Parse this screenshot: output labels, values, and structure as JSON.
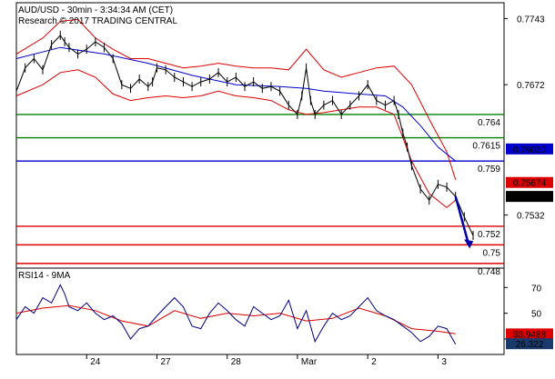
{
  "header": {
    "line1": "AUD/USD - 30min - 3:34:34 AM (CET)",
    "line2": "Research © 2017 TRADING CENTRAL"
  },
  "chart_data": [
    {
      "type": "line",
      "panel": "price",
      "ylim": [
        0.7475,
        0.776
      ],
      "x_range": [
        0,
        104
      ],
      "y_ticks": [
        {
          "label": "0.7743",
          "value": 0.7743
        },
        {
          "label": "0.7672",
          "value": 0.7672
        },
        {
          "label": "0.7532",
          "value": 0.7532
        }
      ],
      "levels": [
        {
          "value": 0.764,
          "label": "0.764",
          "color": "#008000"
        },
        {
          "value": 0.7615,
          "label": "0.7615",
          "color": "#008000"
        },
        {
          "value": 0.759,
          "label": "0.759",
          "color": "#0000cc"
        },
        {
          "value": 0.752,
          "label": "0.752",
          "color": "#dd0000"
        },
        {
          "value": 0.75,
          "label": "0.75",
          "color": "#dd0000"
        },
        {
          "value": 0.748,
          "label": "0.748",
          "color": "#dd0000"
        }
      ],
      "price_badges": [
        {
          "value": 0.7603,
          "label": "0.76030",
          "bg": "#0000cc",
          "fg": "#ffffff"
        },
        {
          "value": 0.7567,
          "label": "0.75674",
          "bg": "#dd0000",
          "fg": "#ffffff"
        },
        {
          "value": 0.7552,
          "label": "0.75523",
          "bg": "#000000",
          "fg": "#ffffff"
        }
      ],
      "price": {
        "x": [
          0,
          2,
          4,
          6,
          8,
          10,
          11,
          12,
          14,
          16,
          18,
          20,
          22,
          24,
          26,
          28,
          30,
          31,
          32,
          34,
          36,
          38,
          40,
          42,
          44,
          46,
          48,
          50,
          52,
          54,
          56,
          58,
          60,
          62,
          64,
          65,
          66,
          67,
          68,
          70,
          72,
          74,
          76,
          78,
          80,
          82,
          84,
          86,
          87,
          88,
          89,
          90,
          92,
          94,
          96,
          98,
          100,
          102,
          104
        ],
        "y": [
          0.7665,
          0.769,
          0.77,
          0.7688,
          0.7715,
          0.7725,
          0.7718,
          0.7712,
          0.7705,
          0.771,
          0.7718,
          0.7712,
          0.77,
          0.7672,
          0.7668,
          0.7678,
          0.767,
          0.7675,
          0.769,
          0.7688,
          0.768,
          0.7675,
          0.767,
          0.7675,
          0.7678,
          0.7685,
          0.7675,
          0.768,
          0.767,
          0.7675,
          0.7668,
          0.767,
          0.7665,
          0.765,
          0.764,
          0.766,
          0.769,
          0.7655,
          0.764,
          0.765,
          0.7655,
          0.764,
          0.765,
          0.766,
          0.7672,
          0.7655,
          0.765,
          0.7655,
          0.764,
          0.762,
          0.7605,
          0.7585,
          0.756,
          0.7548,
          0.7565,
          0.7562,
          0.7552,
          0.753,
          0.751
        ]
      },
      "ma": {
        "x": [
          0,
          10,
          20,
          30,
          40,
          50,
          60,
          66,
          70,
          78,
          84,
          88,
          92,
          96,
          100
        ],
        "y": [
          0.77,
          0.7712,
          0.7705,
          0.7695,
          0.7682,
          0.7672,
          0.767,
          0.7668,
          0.7665,
          0.7662,
          0.766,
          0.7648,
          0.7628,
          0.7605,
          0.759
        ]
      },
      "bb_upper": {
        "x": [
          0,
          6,
          10,
          14,
          18,
          22,
          26,
          30,
          34,
          38,
          42,
          46,
          50,
          54,
          58,
          62,
          66,
          70,
          74,
          78,
          82,
          86,
          90,
          94,
          98,
          100
        ],
        "y": [
          0.7705,
          0.7722,
          0.774,
          0.7742,
          0.7722,
          0.771,
          0.77,
          0.77,
          0.7695,
          0.769,
          0.7692,
          0.7695,
          0.7692,
          0.769,
          0.769,
          0.7688,
          0.771,
          0.7688,
          0.768,
          0.7685,
          0.769,
          0.7692,
          0.7672,
          0.7635,
          0.76,
          0.757
        ]
      },
      "bb_lower": {
        "x": [
          0,
          6,
          10,
          14,
          18,
          22,
          26,
          30,
          34,
          38,
          42,
          46,
          50,
          54,
          58,
          62,
          66,
          70,
          74,
          78,
          82,
          86,
          90,
          94,
          98,
          100
        ],
        "y": [
          0.766,
          0.7672,
          0.7685,
          0.7688,
          0.768,
          0.7662,
          0.7655,
          0.7658,
          0.766,
          0.7658,
          0.766,
          0.7665,
          0.766,
          0.7658,
          0.7655,
          0.7645,
          0.764,
          0.7642,
          0.7645,
          0.7648,
          0.7648,
          0.764,
          0.759,
          0.7555,
          0.754,
          0.7548
        ]
      },
      "projection": {
        "x": [
          100,
          103
        ],
        "y": [
          0.7552,
          0.75
        ]
      }
    },
    {
      "type": "line",
      "panel": "rsi",
      "title": "RSI14 - 9MA",
      "ylim": [
        18,
        85
      ],
      "x_range": [
        0,
        104
      ],
      "y_ticks": [
        {
          "label": "70",
          "value": 70
        },
        {
          "label": "50",
          "value": 50
        },
        {
          "label": "30",
          "value": 30
        }
      ],
      "price_badges": [
        {
          "value": 33.9488,
          "label": "33.9488",
          "bg": "#dd0000",
          "fg": "#ffffff"
        },
        {
          "value": 26.322,
          "label": "26.322",
          "bg": "#1a3a6b",
          "fg": "#ffffff"
        }
      ],
      "rsi": {
        "x": [
          0,
          2,
          4,
          6,
          8,
          10,
          11,
          12,
          14,
          16,
          18,
          20,
          22,
          24,
          26,
          28,
          30,
          32,
          34,
          36,
          38,
          40,
          42,
          44,
          46,
          48,
          50,
          52,
          54,
          56,
          58,
          60,
          62,
          64,
          66,
          68,
          70,
          72,
          74,
          76,
          78,
          80,
          82,
          84,
          86,
          88,
          90,
          92,
          94,
          96,
          98,
          100
        ],
        "y": [
          45,
          55,
          50,
          62,
          58,
          72,
          65,
          55,
          52,
          58,
          50,
          45,
          48,
          42,
          30,
          38,
          40,
          48,
          55,
          62,
          55,
          40,
          38,
          50,
          58,
          52,
          45,
          40,
          55,
          50,
          45,
          48,
          60,
          38,
          52,
          28,
          40,
          50,
          45,
          48,
          55,
          62,
          52,
          48,
          45,
          40,
          35,
          28,
          32,
          40,
          38,
          26
        ]
      },
      "rsi_ma": {
        "x": [
          0,
          6,
          12,
          18,
          24,
          30,
          36,
          42,
          48,
          54,
          60,
          66,
          72,
          78,
          84,
          90,
          96,
          100
        ],
        "y": [
          50,
          54,
          56,
          52,
          44,
          40,
          52,
          46,
          50,
          48,
          50,
          44,
          46,
          54,
          48,
          38,
          36,
          34
        ]
      }
    }
  ],
  "x_axis": {
    "ticks": [
      {
        "x": 16,
        "label": "24"
      },
      {
        "x": 32,
        "label": "27"
      },
      {
        "x": 48,
        "label": "28"
      },
      {
        "x": 64,
        "label": "Mar"
      },
      {
        "x": 80,
        "label": "2"
      },
      {
        "x": 96,
        "label": "3"
      }
    ]
  }
}
